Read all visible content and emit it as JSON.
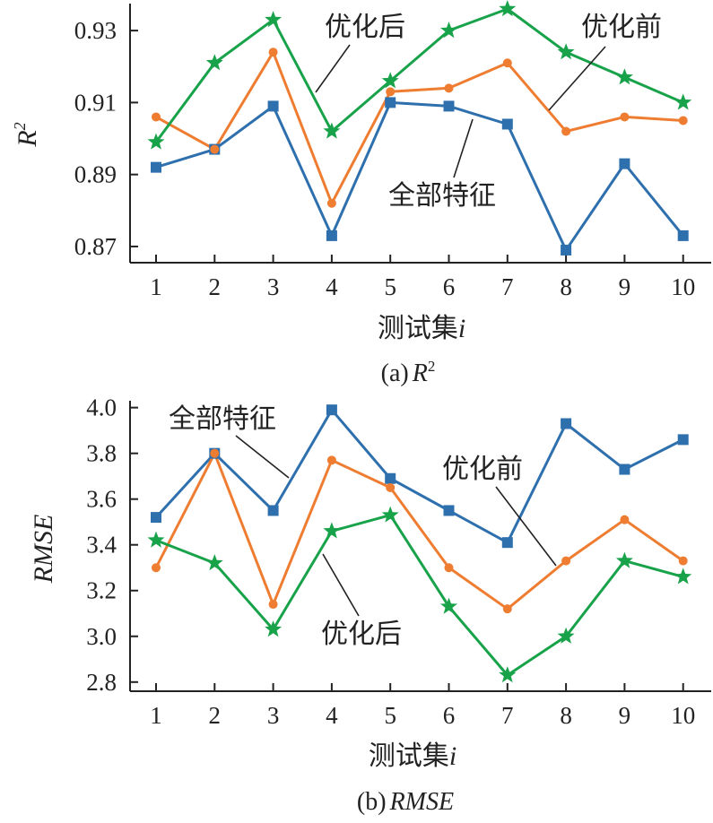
{
  "colors": {
    "all": "#2e6fad",
    "before": "#ef7d31",
    "after": "#18a24a",
    "axis": "#222222"
  },
  "chart_data": [
    {
      "type": "line",
      "caption": "(a)",
      "caption_var": "R",
      "caption_sup": "2",
      "xlabel": "测试集",
      "xlabel_var": "i",
      "ylabel": "R",
      "ylabel_sup": "2",
      "x": [
        1,
        2,
        3,
        4,
        5,
        6,
        7,
        8,
        9,
        10
      ],
      "y_ticks": [
        "0.87",
        "0.89",
        "0.91",
        "0.93"
      ],
      "ylim": [
        0.8655,
        0.9375
      ],
      "series": [
        {
          "name": "全部特征",
          "marker": "square",
          "values": [
            0.892,
            0.897,
            0.909,
            0.873,
            0.91,
            0.909,
            0.904,
            0.869,
            0.893,
            0.873
          ]
        },
        {
          "name": "优化前",
          "marker": "circle",
          "values": [
            0.906,
            0.897,
            0.924,
            0.882,
            0.913,
            0.914,
            0.921,
            0.902,
            0.906,
            0.905
          ]
        },
        {
          "name": "优化后",
          "marker": "star",
          "values": [
            0.899,
            0.921,
            0.933,
            0.902,
            0.916,
            0.93,
            0.936,
            0.924,
            0.917,
            0.91
          ]
        }
      ]
    },
    {
      "type": "line",
      "caption": "(b)",
      "caption_var": "RMSE",
      "xlabel": "测试集",
      "xlabel_var": "i",
      "ylabel": "RMSE",
      "x": [
        1,
        2,
        3,
        4,
        5,
        6,
        7,
        8,
        9,
        10
      ],
      "y_ticks": [
        "2.8",
        "3.0",
        "3.2",
        "3.4",
        "3.6",
        "3.8",
        "4.0"
      ],
      "ylim": [
        2.76,
        4.03
      ],
      "series": [
        {
          "name": "全部特征",
          "marker": "square",
          "values": [
            3.52,
            3.8,
            3.55,
            3.99,
            3.69,
            3.55,
            3.41,
            3.93,
            3.73,
            3.86
          ]
        },
        {
          "name": "优化前",
          "marker": "circle",
          "values": [
            3.3,
            3.8,
            3.14,
            3.77,
            3.65,
            3.3,
            3.12,
            3.33,
            3.51,
            3.33
          ]
        },
        {
          "name": "优化后",
          "marker": "star",
          "values": [
            3.42,
            3.32,
            3.03,
            3.46,
            3.53,
            3.13,
            2.83,
            3.0,
            3.33,
            3.26
          ]
        }
      ]
    }
  ]
}
